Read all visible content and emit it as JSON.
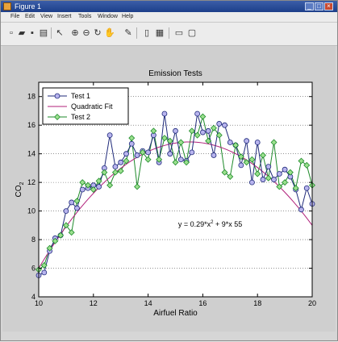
{
  "window": {
    "title": "Figure 1"
  },
  "menu": [
    "File",
    "Edit",
    "View",
    "Insert",
    "Tools",
    "Window",
    "Help"
  ],
  "toolbar_icons": [
    "new-figure-icon",
    "open-file-icon",
    "save-icon",
    "print-icon",
    "edit-plot-icon",
    "zoom-in-icon",
    "zoom-out-icon",
    "rotate-3d-icon",
    "data-cursor-icon",
    "colorbar-icon",
    "legend-icon",
    "hide-plot-tools-icon",
    "show-plot-tools-icon"
  ],
  "colors": {
    "test1": "#1f2a7a",
    "test1_marker_fill": "#b8b4ee",
    "fit": "#b0207a",
    "test2": "#1e8a2a",
    "test2_marker_fill": "#9be08e",
    "axes_bg": "#ffffff"
  },
  "chart_data": {
    "type": "line",
    "title": "Emission Tests",
    "xlabel": "Airfuel Ratio",
    "ylabel": "CO",
    "ylabel_subscript": "2",
    "xlim": [
      10,
      20
    ],
    "ylim": [
      4,
      19
    ],
    "xticks": [
      10,
      12,
      14,
      16,
      18,
      20
    ],
    "yticks": [
      4,
      6,
      8,
      10,
      12,
      14,
      16,
      18
    ],
    "grid": "y-dotted",
    "legend_placement": "top-left",
    "annotation": {
      "text_pre": "y =    0.29*x",
      "sup": "2",
      "text_post": " + 9*x    55",
      "x": 15.1,
      "y": 8.9
    },
    "series": [
      {
        "name": "Test 1",
        "style": "line-circle",
        "points": [
          [
            10.0,
            5.5
          ],
          [
            10.2,
            5.7
          ],
          [
            10.4,
            7.2
          ],
          [
            10.6,
            8.1
          ],
          [
            10.8,
            8.3
          ],
          [
            11.0,
            10.0
          ],
          [
            11.2,
            10.6
          ],
          [
            11.4,
            10.2
          ],
          [
            11.6,
            11.5
          ],
          [
            11.8,
            11.6
          ],
          [
            12.0,
            11.8
          ],
          [
            12.2,
            11.7
          ],
          [
            12.4,
            13.0
          ],
          [
            12.6,
            15.3
          ],
          [
            12.8,
            13.1
          ],
          [
            13.0,
            13.4
          ],
          [
            13.2,
            14.0
          ],
          [
            13.4,
            14.7
          ],
          [
            13.6,
            13.9
          ],
          [
            13.8,
            14.2
          ],
          [
            14.0,
            14.1
          ],
          [
            14.2,
            15.3
          ],
          [
            14.4,
            13.4
          ],
          [
            14.6,
            16.8
          ],
          [
            14.8,
            14.0
          ],
          [
            15.0,
            15.6
          ],
          [
            15.2,
            13.6
          ],
          [
            15.4,
            13.5
          ],
          [
            15.6,
            14.1
          ],
          [
            15.8,
            16.8
          ],
          [
            16.0,
            15.5
          ],
          [
            16.2,
            15.6
          ],
          [
            16.4,
            13.9
          ],
          [
            16.6,
            16.1
          ],
          [
            16.8,
            16.0
          ],
          [
            17.0,
            14.8
          ],
          [
            17.2,
            14.6
          ],
          [
            17.4,
            13.2
          ],
          [
            17.6,
            14.9
          ],
          [
            17.8,
            12.0
          ],
          [
            18.0,
            14.8
          ],
          [
            18.2,
            12.2
          ],
          [
            18.4,
            13.1
          ],
          [
            18.6,
            12.2
          ],
          [
            18.8,
            12.6
          ],
          [
            19.0,
            12.9
          ],
          [
            19.2,
            12.4
          ],
          [
            19.4,
            11.5
          ],
          [
            19.6,
            10.1
          ],
          [
            19.8,
            11.6
          ],
          [
            20.0,
            10.5
          ]
        ]
      },
      {
        "name": "Quadratic Fit",
        "style": "line",
        "a": -0.29,
        "b": 9,
        "c": -55
      },
      {
        "name": "Test 2",
        "style": "line-diamond",
        "points": [
          [
            10.0,
            5.9
          ],
          [
            10.2,
            6.2
          ],
          [
            10.4,
            7.4
          ],
          [
            10.6,
            7.9
          ],
          [
            10.8,
            8.3
          ],
          [
            11.0,
            9.0
          ],
          [
            11.2,
            8.5
          ],
          [
            11.4,
            10.7
          ],
          [
            11.6,
            12.0
          ],
          [
            11.8,
            11.8
          ],
          [
            12.0,
            11.5
          ],
          [
            12.2,
            12.1
          ],
          [
            12.4,
            12.7
          ],
          [
            12.6,
            11.8
          ],
          [
            12.8,
            12.7
          ],
          [
            13.0,
            12.8
          ],
          [
            13.2,
            13.5
          ],
          [
            13.4,
            15.1
          ],
          [
            13.6,
            11.7
          ],
          [
            13.8,
            14.1
          ],
          [
            14.0,
            13.6
          ],
          [
            14.2,
            15.6
          ],
          [
            14.4,
            13.6
          ],
          [
            14.6,
            15.1
          ],
          [
            14.8,
            14.9
          ],
          [
            15.0,
            13.4
          ],
          [
            15.2,
            14.8
          ],
          [
            15.4,
            13.4
          ],
          [
            15.6,
            15.6
          ],
          [
            15.8,
            15.3
          ],
          [
            16.0,
            16.6
          ],
          [
            16.2,
            14.9
          ],
          [
            16.4,
            15.8
          ],
          [
            16.6,
            15.3
          ],
          [
            16.8,
            12.7
          ],
          [
            17.0,
            12.4
          ],
          [
            17.2,
            14.6
          ],
          [
            17.4,
            13.8
          ],
          [
            17.6,
            13.4
          ],
          [
            17.8,
            13.6
          ],
          [
            18.0,
            12.6
          ],
          [
            18.2,
            13.9
          ],
          [
            18.4,
            12.3
          ],
          [
            18.6,
            14.8
          ],
          [
            18.8,
            11.7
          ],
          [
            19.0,
            12.0
          ],
          [
            19.2,
            12.7
          ],
          [
            19.4,
            11.6
          ],
          [
            19.6,
            13.5
          ],
          [
            19.8,
            13.2
          ],
          [
            20.0,
            11.8
          ]
        ]
      }
    ]
  }
}
